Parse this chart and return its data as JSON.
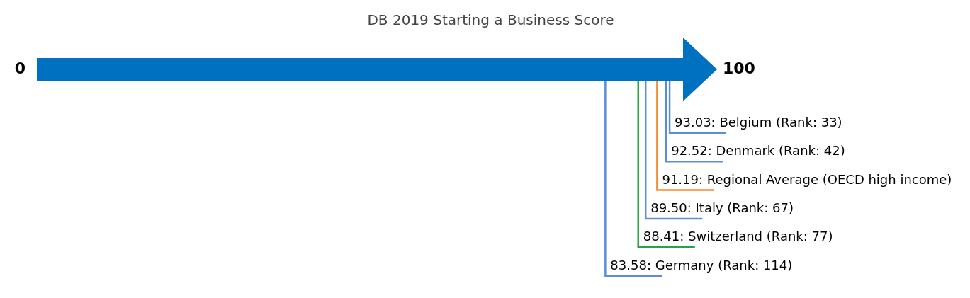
{
  "chart_data": {
    "type": "other",
    "title": "DB 2019 Starting a Business Score",
    "annotations": [
      "0",
      "100"
    ],
    "categories": [
      ": Belgium (Rank: 33)",
      ": Denmark (Rank: 42)",
      ": Regional Average (OECD high income)",
      ": Italy (Rank: 67)",
      ": Switzerland (Rank: 77)",
      ": Germany (Rank: 114)"
    ],
    "values": [
      93.03,
      92.52,
      91.19,
      89.5,
      88.41,
      83.58
    ],
    "value_labels": [
      "93.03",
      "92.52",
      "91.19",
      "89.50",
      "88.41",
      "83.58"
    ],
    "colors": [
      "#5b8fd0",
      "#5b8fd0",
      "#f58a2a",
      "#5b8fd0",
      "#2ca048",
      "#5b8fd0"
    ],
    "color": "#0070c0"
  }
}
